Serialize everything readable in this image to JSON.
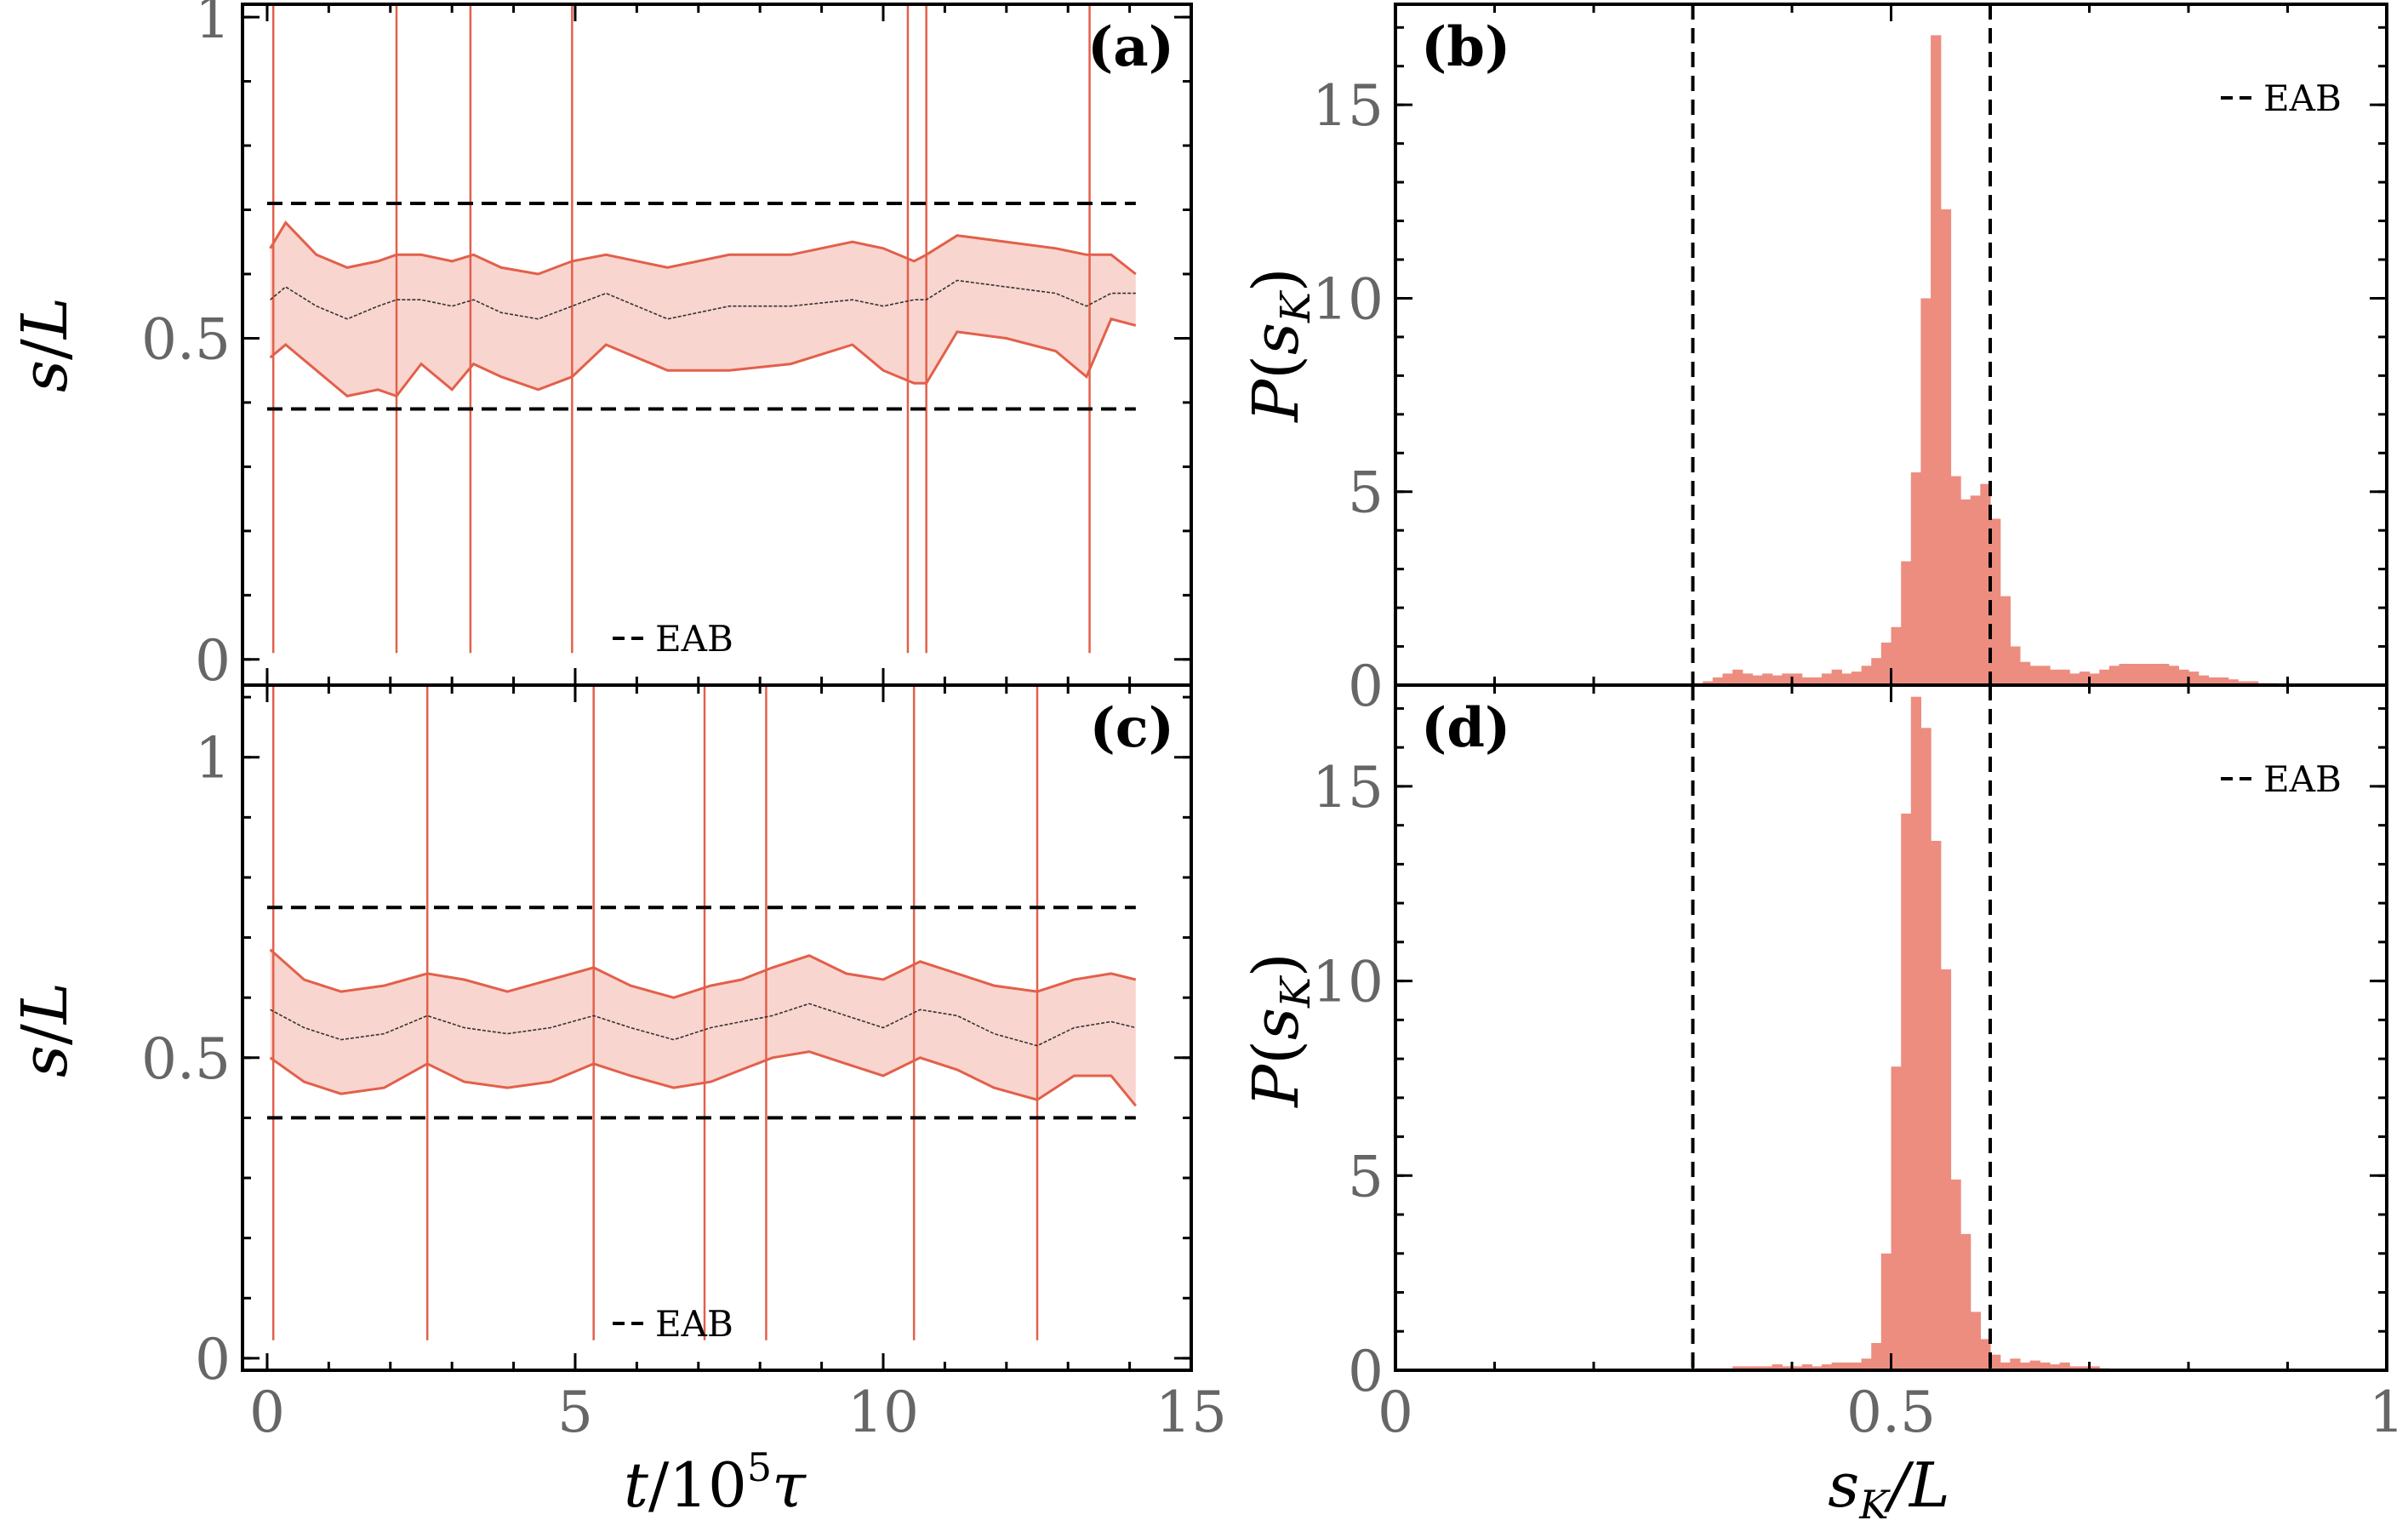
{
  "chart_data": [
    {
      "id": "a",
      "type": "line",
      "panel_label": "(a)",
      "ylabel": "s/L",
      "xlabel": "",
      "xlim": [
        -0.4,
        15
      ],
      "ylim": [
        -0.04,
        1.02
      ],
      "yticks": [
        "0",
        "0.5",
        "1"
      ],
      "xticks": [],
      "legend": "EAB",
      "legend_position": "bottom-right",
      "eab_lines": [
        0.71,
        0.39
      ],
      "colors": {
        "band": "#e2604a",
        "fill": "#f9d5cf",
        "mean": "#333333",
        "dashed": "#000000"
      },
      "series": [
        {
          "name": "",
          "x": [
            0.05,
            0.3,
            0.8,
            1.3,
            1.8,
            2.1,
            2.5,
            3.0,
            3.35,
            3.8,
            4.4,
            4.95,
            5.5,
            6.5,
            7.5,
            8.5,
            9.5,
            10.0,
            10.5,
            10.7,
            11.2,
            12.0,
            12.8,
            13.3,
            13.7,
            14.1
          ],
          "upper": [
            0.64,
            0.68,
            0.63,
            0.61,
            0.62,
            0.63,
            0.63,
            0.62,
            0.63,
            0.61,
            0.6,
            0.62,
            0.63,
            0.61,
            0.63,
            0.63,
            0.65,
            0.64,
            0.62,
            0.63,
            0.66,
            0.65,
            0.64,
            0.63,
            0.63,
            0.6
          ],
          "mean": [
            0.56,
            0.58,
            0.55,
            0.53,
            0.55,
            0.56,
            0.56,
            0.55,
            0.56,
            0.54,
            0.53,
            0.55,
            0.57,
            0.53,
            0.55,
            0.55,
            0.56,
            0.55,
            0.56,
            0.56,
            0.59,
            0.58,
            0.57,
            0.55,
            0.57,
            0.57
          ],
          "lower": [
            0.47,
            0.49,
            0.45,
            0.41,
            0.42,
            0.41,
            0.46,
            0.42,
            0.46,
            0.44,
            0.42,
            0.44,
            0.49,
            0.45,
            0.45,
            0.46,
            0.49,
            0.45,
            0.43,
            0.43,
            0.51,
            0.5,
            0.48,
            0.44,
            0.53,
            0.52
          ]
        }
      ],
      "jumps": [
        0.1,
        2.1,
        3.3,
        4.95,
        10.4,
        10.7,
        13.35
      ]
    },
    {
      "id": "b",
      "type": "bar",
      "panel_label": "(b)",
      "ylabel": "P(s_K)",
      "xlabel": "",
      "xlim": [
        0,
        1
      ],
      "ylim": [
        0,
        17.6
      ],
      "yticks": [
        "0",
        "5",
        "10",
        "15"
      ],
      "xticks": [],
      "legend": "EAB",
      "legend_position": "top-right",
      "eab_lines": [
        0.3,
        0.6
      ],
      "colors": {
        "bar": "#ec8d80",
        "dashed": "#000000"
      },
      "bin_start": 0.3,
      "bin_width": 0.01,
      "values": [
        0.05,
        0.1,
        0.2,
        0.3,
        0.4,
        0.3,
        0.25,
        0.3,
        0.25,
        0.3,
        0.3,
        0.2,
        0.2,
        0.3,
        0.4,
        0.3,
        0.35,
        0.5,
        0.7,
        1.1,
        1.5,
        3.2,
        5.5,
        10.0,
        16.8,
        12.3,
        5.4,
        4.8,
        4.9,
        5.2,
        4.3,
        2.3,
        1.0,
        0.6,
        0.5,
        0.5,
        0.4,
        0.4,
        0.3,
        0.35,
        0.3,
        0.4,
        0.5,
        0.55,
        0.55,
        0.55,
        0.55,
        0.55,
        0.5,
        0.4,
        0.35,
        0.25,
        0.2,
        0.2,
        0.15,
        0.1,
        0.1,
        0.05,
        0.05
      ]
    },
    {
      "id": "c",
      "type": "line",
      "panel_label": "(c)",
      "ylabel": "s/L",
      "xlabel": "t/10^5 τ",
      "xlim": [
        -0.4,
        15
      ],
      "ylim": [
        -0.02,
        1.12
      ],
      "yticks": [
        "0",
        "0.5",
        "1"
      ],
      "xticks": [
        "0",
        "5",
        "10",
        "15"
      ],
      "legend": "EAB",
      "legend_position": "bottom-right",
      "eab_lines": [
        0.75,
        0.4
      ],
      "colors": {
        "band": "#e2604a",
        "fill": "#f9d5cf",
        "mean": "#333333",
        "dashed": "#000000"
      },
      "series": [
        {
          "name": "",
          "x": [
            0.05,
            0.6,
            1.2,
            1.9,
            2.6,
            3.2,
            3.9,
            4.6,
            5.3,
            5.9,
            6.6,
            7.2,
            7.7,
            8.2,
            8.8,
            9.4,
            10.0,
            10.6,
            11.2,
            11.8,
            12.5,
            13.1,
            13.7,
            14.1
          ],
          "upper": [
            0.68,
            0.63,
            0.61,
            0.62,
            0.64,
            0.63,
            0.61,
            0.63,
            0.65,
            0.62,
            0.6,
            0.62,
            0.63,
            0.65,
            0.67,
            0.64,
            0.63,
            0.66,
            0.64,
            0.62,
            0.61,
            0.63,
            0.64,
            0.63
          ],
          "mean": [
            0.58,
            0.55,
            0.53,
            0.54,
            0.57,
            0.55,
            0.54,
            0.55,
            0.57,
            0.55,
            0.53,
            0.55,
            0.56,
            0.57,
            0.59,
            0.57,
            0.55,
            0.58,
            0.57,
            0.54,
            0.52,
            0.55,
            0.56,
            0.55
          ],
          "lower": [
            0.5,
            0.46,
            0.44,
            0.45,
            0.49,
            0.46,
            0.45,
            0.46,
            0.49,
            0.47,
            0.45,
            0.46,
            0.48,
            0.5,
            0.51,
            0.49,
            0.47,
            0.5,
            0.48,
            0.45,
            0.43,
            0.47,
            0.47,
            0.42
          ]
        }
      ],
      "jumps": [
        0.1,
        2.6,
        5.3,
        7.1,
        8.1,
        10.5,
        12.5
      ]
    },
    {
      "id": "d",
      "type": "bar",
      "panel_label": "(d)",
      "ylabel": "P(s_K)",
      "xlabel": "s_K/L",
      "xlim": [
        0,
        1
      ],
      "ylim": [
        0,
        17.6
      ],
      "yticks": [
        "0",
        "5",
        "10",
        "15"
      ],
      "xticks": [
        "0",
        "0.5",
        "1"
      ],
      "legend": "EAB",
      "legend_position": "top-right",
      "eab_lines": [
        0.3,
        0.6
      ],
      "colors": {
        "bar": "#ec8d80",
        "dashed": "#000000"
      },
      "bin_start": 0.3,
      "bin_width": 0.01,
      "values": [
        0.05,
        0.05,
        0.05,
        0.05,
        0.1,
        0.1,
        0.1,
        0.1,
        0.15,
        0.1,
        0.1,
        0.15,
        0.1,
        0.15,
        0.2,
        0.2,
        0.2,
        0.3,
        0.7,
        3.0,
        7.8,
        14.3,
        17.3,
        16.5,
        13.6,
        10.3,
        4.9,
        3.5,
        1.5,
        0.8,
        0.4,
        0.2,
        0.3,
        0.2,
        0.25,
        0.2,
        0.15,
        0.2,
        0.1,
        0.1,
        0.1,
        0.05
      ]
    }
  ],
  "axis_text": {
    "a_ylabel_var": "s",
    "a_ylabel_slash": "/",
    "a_ylabel_L": "L",
    "b_ylabel_P": "P",
    "b_ylabel_open": "(",
    "b_ylabel_s": "s",
    "b_ylabel_K": "K",
    "b_ylabel_close": ")",
    "c_ylabel_var": "s",
    "c_ylabel_slash": "/",
    "c_ylabel_L": "L",
    "d_ylabel_P": "P",
    "d_ylabel_open": "(",
    "d_ylabel_s": "s",
    "d_ylabel_K": "K",
    "d_ylabel_close": ")",
    "c_xlabel_t": "t",
    "c_xlabel_slash": "/10",
    "c_xlabel_exp": "5",
    "c_xlabel_tau": "τ",
    "d_xlabel_s": "s",
    "d_xlabel_K": "K",
    "d_xlabel_rest": "/L"
  }
}
